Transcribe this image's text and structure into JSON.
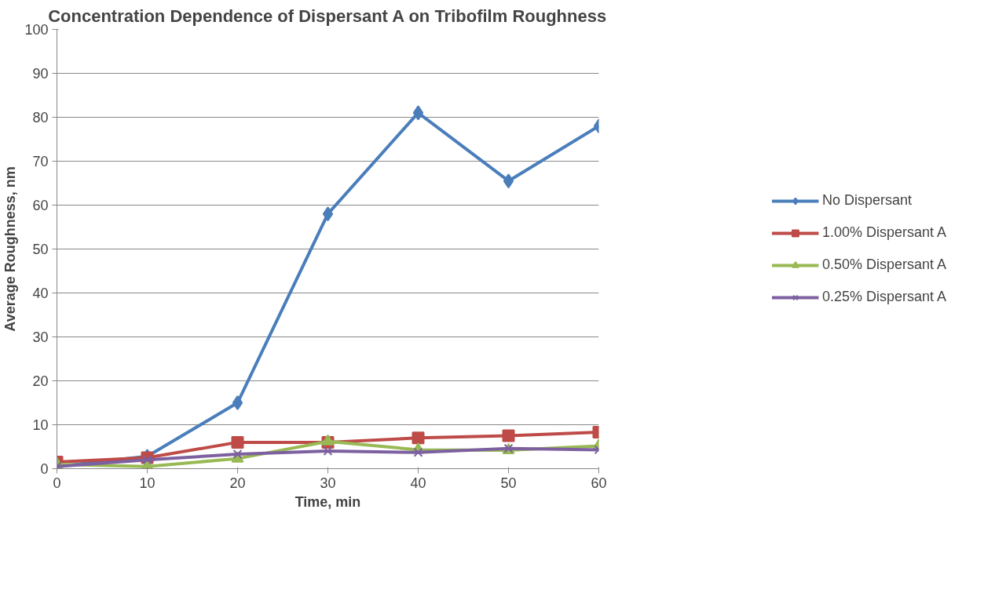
{
  "chart_data": {
    "type": "line",
    "title": "Concentration Dependence of Dispersant A on Tribofilm Roughness",
    "xlabel": "Time, min",
    "ylabel": "Average Roughness, nm",
    "x": [
      0,
      10,
      20,
      30,
      40,
      50,
      60
    ],
    "xlim": [
      0,
      60
    ],
    "xticks": [
      0,
      10,
      20,
      30,
      40,
      50,
      60
    ],
    "ylim": [
      0,
      100
    ],
    "yticks": [
      0,
      10,
      20,
      30,
      40,
      50,
      60,
      70,
      80,
      90,
      100
    ],
    "grid": "y",
    "legend": "right",
    "series": [
      {
        "name": "No Dispersant",
        "color": "#4a7ebb",
        "marker": "diamond",
        "values": [
          0.5,
          2.8,
          15,
          58,
          81,
          65.5,
          78
        ]
      },
      {
        "name": "1.00% Dispersant A",
        "color": "#be4b48",
        "marker": "square",
        "values": [
          1.5,
          2.5,
          6,
          6,
          7,
          7.5,
          8.3
        ]
      },
      {
        "name": "0.50% Dispersant A",
        "color": "#98b954",
        "marker": "triangle",
        "values": [
          1,
          0.5,
          2.3,
          6.2,
          4.3,
          4.2,
          5.2
        ]
      },
      {
        "name": "0.25% Dispersant A",
        "color": "#7d60a0",
        "marker": "cross",
        "values": [
          0.5,
          2,
          3.3,
          4,
          3.7,
          4.6,
          4.3
        ]
      }
    ]
  }
}
